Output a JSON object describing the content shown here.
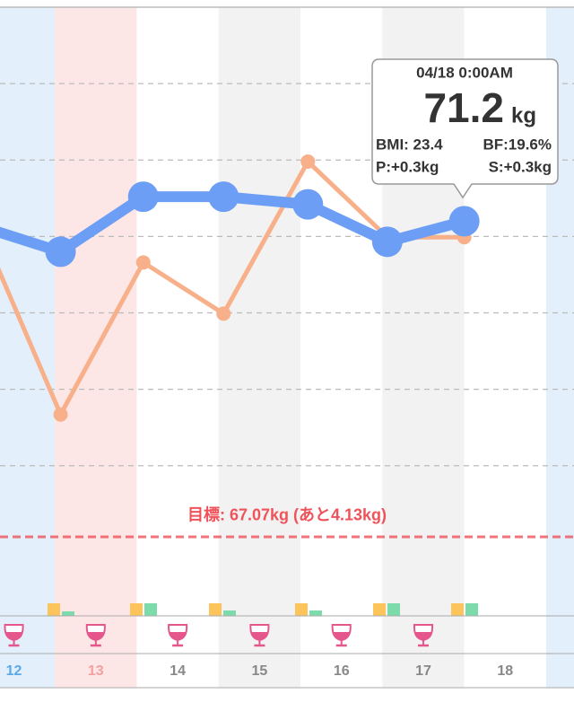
{
  "chart_data": {
    "type": "line",
    "xlim": [
      12.33,
      19.34
    ],
    "ylim": [
      66.2,
      74
    ],
    "yticks": [
      68,
      69,
      70,
      71,
      72,
      73
    ],
    "grid": true,
    "xticks": [
      {
        "value": 12.5,
        "label": "12"
      },
      {
        "value": 13.5,
        "label": "13"
      },
      {
        "value": 14.5,
        "label": "14"
      },
      {
        "value": 15.5,
        "label": "15"
      },
      {
        "value": 16.5,
        "label": "16"
      },
      {
        "value": 17.5,
        "label": "17"
      },
      {
        "value": 18.5,
        "label": "18"
      }
    ],
    "xtick_colors": [
      "#5aa9e6",
      "#f4a0a0",
      "#888888",
      "#888888",
      "#888888",
      "#888888",
      "#888888"
    ],
    "bands": {
      "starts": [
        12,
        13,
        14,
        15,
        16,
        17,
        18,
        19
      ],
      "colors": [
        "#e3f0fb",
        "#fde6e6",
        "#ffffff",
        "#f2f2f2",
        "#ffffff",
        "#f2f2f2",
        "#ffffff",
        "#e3f0fb"
      ]
    },
    "x": [
      12.1,
      13.07,
      14.08,
      15.06,
      16.09,
      17.06,
      18.0
    ],
    "series": [
      {
        "color": "#f8b08a",
        "values": [
          71.1,
          68.67,
          70.66,
          69.99,
          71.98,
          70.99,
          70.99
        ]
      },
      {
        "color": "#6d9ef5",
        "values": [
          71.13,
          70.8,
          71.52,
          71.52,
          71.42,
          70.93,
          71.2
        ]
      }
    ],
    "goal": {
      "value": 67.07,
      "label": "目標: 67.07kg (あと4.13kg)",
      "color": "#f0525a"
    },
    "tooltip": {
      "date": "04/18 0:00AM",
      "weight": "71.2",
      "unit": "kg",
      "bmi": "BMI: 23.4",
      "bf": "BF:19.6%",
      "p": "P:+0.3kg",
      "s": "S:+0.3kg"
    }
  }
}
